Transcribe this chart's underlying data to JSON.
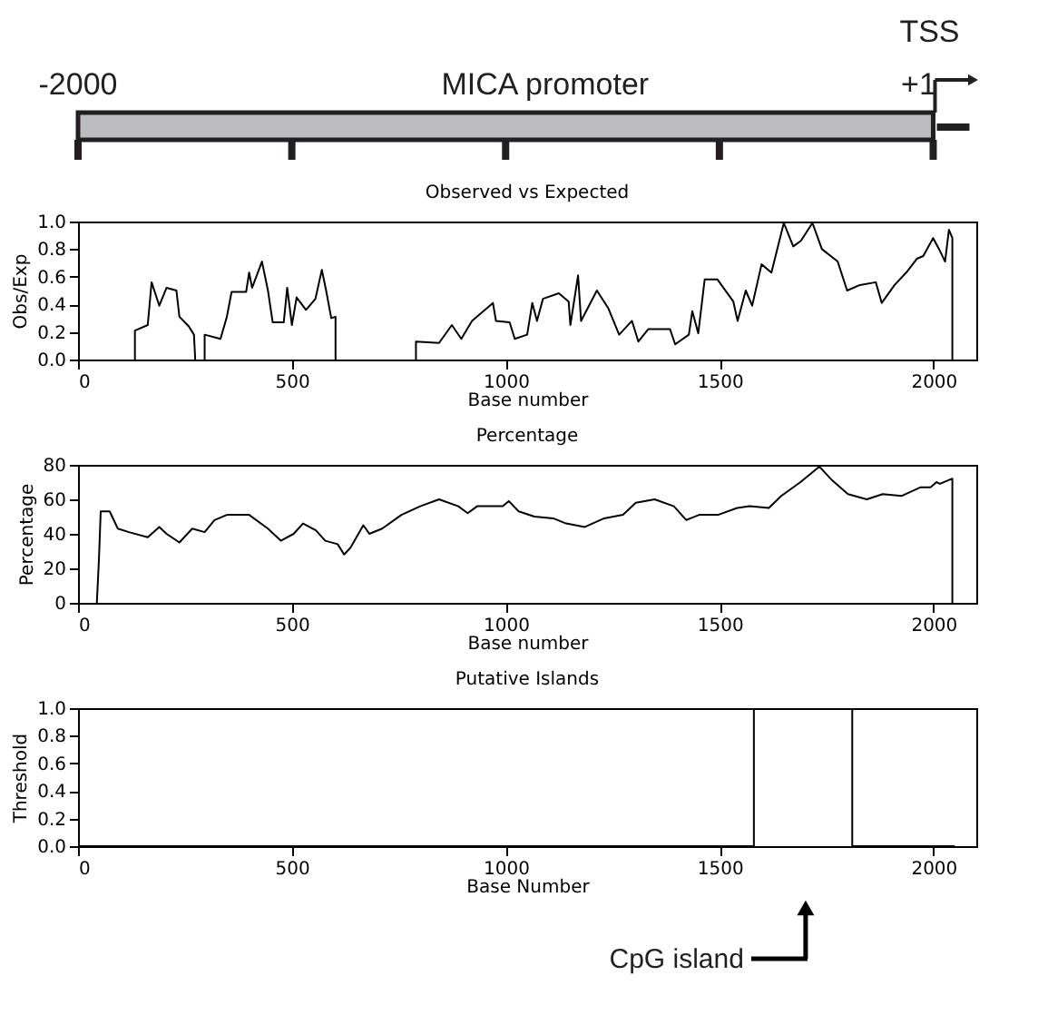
{
  "chart_data": [
    {
      "type": "other",
      "annotations": [
        "-2000",
        "MICA promoter",
        "TSS",
        "+1"
      ]
    },
    {
      "type": "line",
      "title": "Observed vs Expected",
      "xlabel": "Base number",
      "ylabel": "Obs/Exp",
      "color": "#000000",
      "grid": false,
      "x": [
        133,
        133,
        163,
        172,
        190,
        207,
        230,
        237,
        259,
        271,
        274,
        285,
        296,
        296,
        333,
        348,
        359,
        393,
        400,
        407,
        430,
        444,
        455,
        481,
        489,
        500,
        511,
        533,
        555,
        570,
        580,
        592,
        602,
        602,
        700,
        790,
        790,
        844,
        874,
        896,
        921,
        970,
        977,
        1009,
        1021,
        1050,
        1062,
        1073,
        1087,
        1124,
        1147,
        1151,
        1169,
        1176,
        1213,
        1240,
        1265,
        1295,
        1310,
        1333,
        1384,
        1396,
        1428,
        1436,
        1450,
        1465,
        1495,
        1532,
        1542,
        1561,
        1576,
        1598,
        1621,
        1650,
        1672,
        1690,
        1717,
        1739,
        1776,
        1798,
        1828,
        1865,
        1879,
        1909,
        1939,
        1961,
        1976,
        1999,
        2013,
        2027,
        2036,
        2044,
        2044
      ],
      "values": [
        0,
        0.21,
        0.25,
        0.56,
        0.39,
        0.52,
        0.5,
        0.31,
        0.24,
        0.18,
        0,
        null,
        0,
        0.18,
        0.15,
        0.31,
        0.49,
        0.49,
        0.63,
        0.52,
        0.71,
        0.5,
        0.27,
        0.27,
        0.52,
        0.25,
        0.45,
        0.36,
        0.44,
        0.65,
        0.5,
        0.3,
        0.31,
        0,
        null,
        0,
        0.13,
        0.12,
        0.25,
        0.15,
        0.28,
        0.41,
        0.28,
        0.27,
        0.15,
        0.18,
        0.41,
        0.28,
        0.44,
        0.48,
        0.42,
        0.25,
        0.61,
        0.28,
        0.5,
        0.37,
        0.18,
        0.28,
        0.13,
        0.22,
        0.22,
        0.11,
        0.18,
        0.35,
        0.19,
        0.58,
        0.58,
        0.42,
        0.28,
        0.5,
        0.39,
        0.69,
        0.63,
        0.99,
        0.82,
        0.86,
        0.99,
        0.8,
        0.71,
        0.5,
        0.54,
        0.56,
        0.41,
        0.54,
        0.64,
        0.73,
        0.75,
        0.88,
        0.8,
        0.71,
        0.94,
        0.88,
        0
      ],
      "xlim": [
        0,
        2100
      ],
      "xticks": [
        0,
        500,
        1000,
        1500,
        2000
      ],
      "ylim": [
        0,
        1
      ],
      "yticks": [
        {
          "value": 0,
          "label": "0.0"
        },
        {
          "value": 0.2,
          "label": "0.2"
        },
        {
          "value": 0.4,
          "label": "0.4"
        },
        {
          "value": 0.6,
          "label": "0.6"
        },
        {
          "value": 0.8,
          "label": "0.8"
        },
        {
          "value": 1,
          "label": "1.0"
        }
      ]
    },
    {
      "type": "line",
      "title": "Percentage",
      "xlabel": "Base number",
      "ylabel": "Percentage",
      "color": "#000000",
      "grid": false,
      "x": [
        44,
        49,
        53,
        74,
        93,
        119,
        163,
        190,
        207,
        237,
        267,
        296,
        319,
        348,
        400,
        444,
        474,
        504,
        526,
        556,
        578,
        607,
        622,
        637,
        667,
        681,
        711,
        756,
        800,
        844,
        889,
        911,
        933,
        993,
        1007,
        1030,
        1067,
        1111,
        1141,
        1185,
        1230,
        1274,
        1304,
        1348,
        1393,
        1422,
        1452,
        1496,
        1541,
        1570,
        1615,
        1644,
        1689,
        1733,
        1763,
        1800,
        1844,
        1881,
        1926,
        1970,
        1993,
        2007,
        2015,
        2044,
        2044
      ],
      "values": [
        0,
        26,
        53,
        53,
        43,
        41,
        38,
        44,
        40,
        35,
        43,
        41,
        48,
        51,
        51,
        43,
        36,
        40,
        46,
        42,
        36,
        34,
        28,
        32,
        45,
        40,
        43,
        51,
        56,
        60,
        56,
        52,
        56,
        56,
        59,
        53,
        50,
        49,
        46,
        44,
        49,
        51,
        58,
        60,
        56,
        48,
        51,
        51,
        55,
        56,
        55,
        62,
        70,
        79,
        71,
        63,
        60,
        63,
        62,
        67,
        67,
        70,
        69,
        72,
        0
      ],
      "xlim": [
        0,
        2100
      ],
      "xticks": [
        0,
        500,
        1000,
        1500,
        2000
      ],
      "ylim": [
        0,
        80
      ],
      "yticks": [
        0,
        20,
        40,
        60,
        80
      ]
    },
    {
      "type": "line",
      "title": "Putative Islands",
      "xlabel": "Base Number",
      "ylabel": "Threshold",
      "color": "#000000",
      "grid": false,
      "x": [
        0,
        1580,
        1580,
        1810,
        1810,
        2050
      ],
      "values": [
        0,
        0,
        1,
        1,
        0,
        0
      ],
      "xlim": [
        0,
        2100
      ],
      "xticks": [
        0,
        500,
        1000,
        1500,
        2000
      ],
      "ylim": [
        0,
        1
      ],
      "yticks": [
        {
          "value": 0,
          "label": "0.0"
        },
        {
          "value": 0.2,
          "label": "0.2"
        },
        {
          "value": 0.4,
          "label": "0.4"
        },
        {
          "value": 0.6,
          "label": "0.6"
        },
        {
          "value": 0.8,
          "label": "0.8"
        },
        {
          "value": 1,
          "label": "1.0"
        }
      ],
      "annotations": [
        "CpG island"
      ]
    }
  ]
}
